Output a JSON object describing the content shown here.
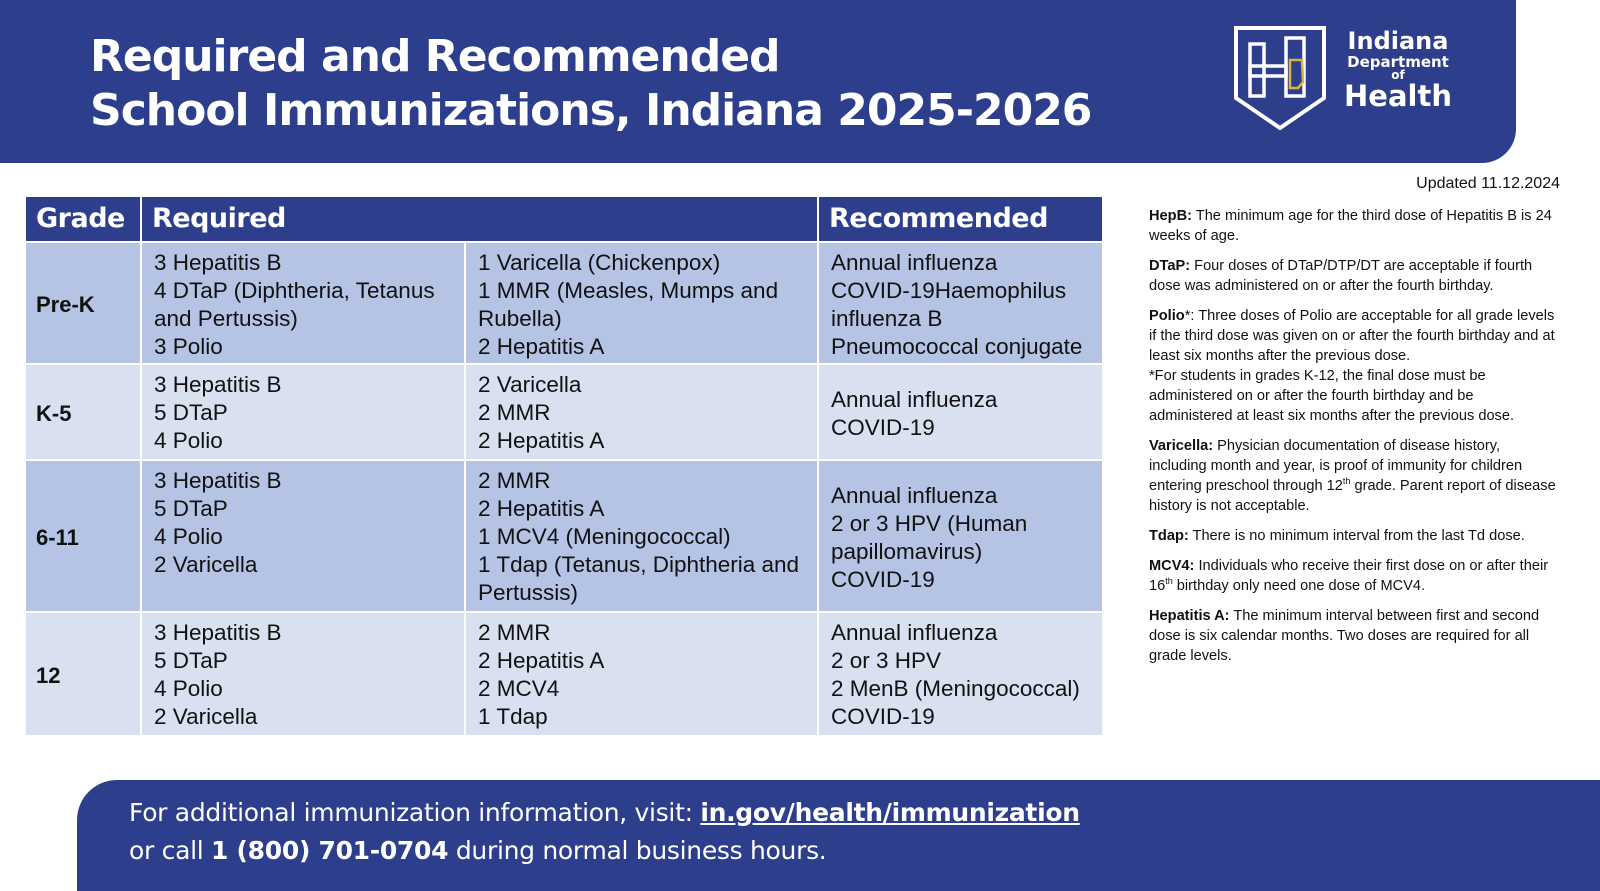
{
  "header": {
    "title_line1": "Required and Recommended",
    "title_line2": "School Immunizations, Indiana 2025-2026",
    "logo": {
      "line1": "Indiana",
      "line2": "Department",
      "line3": "of",
      "line4": "Health"
    }
  },
  "updated": "Updated 11.12.2024",
  "table": {
    "headers": {
      "grade": "Grade",
      "required": "Required",
      "recommended": "Recommended"
    },
    "rows": [
      {
        "grade": "Pre-K",
        "required_a": [
          "3 Hepatitis B",
          "4 DTaP (Diphtheria, Tetanus and Pertussis)",
          "3 Polio"
        ],
        "required_b": [
          "1 Varicella (Chickenpox)",
          "1 MMR (Measles, Mumps and Rubella)",
          "2 Hepatitis A"
        ],
        "recommended": [
          "Annual influenza",
          "COVID-19Haemophilus influenza B",
          "Pneumococcal conjugate"
        ]
      },
      {
        "grade": "K-5",
        "required_a": [
          "3 Hepatitis B",
          "5 DTaP",
          "4 Polio"
        ],
        "required_b": [
          "2 Varicella",
          "2 MMR",
          "2 Hepatitis A"
        ],
        "recommended": [
          "Annual influenza",
          "COVID-19"
        ]
      },
      {
        "grade": "6-11",
        "required_a": [
          "3 Hepatitis B",
          "5 DTaP",
          "4 Polio",
          "2 Varicella"
        ],
        "required_b": [
          "2 MMR",
          "2 Hepatitis A",
          "1 MCV4 (Meningococcal)",
          "1 Tdap (Tetanus, Diphtheria and Pertussis)"
        ],
        "recommended": [
          "Annual influenza",
          "2 or 3 HPV (Human papillomavirus)",
          "COVID-19"
        ]
      },
      {
        "grade": "12",
        "required_a": [
          "3 Hepatitis B",
          "5 DTaP",
          "4 Polio",
          "2 Varicella"
        ],
        "required_b": [
          "2 MMR",
          "2 Hepatitis A",
          "2 MCV4",
          "1 Tdap"
        ],
        "recommended": [
          "Annual influenza",
          "2 or 3 HPV",
          "2 MenB (Meningococcal)",
          "COVID-19"
        ]
      }
    ]
  },
  "notes": {
    "hepb": {
      "label": "HepB:",
      "text": " The minimum age for the third dose of Hepatitis B is 24 weeks of age."
    },
    "dtap": {
      "label": "DTaP:",
      "text": " Four doses of DTaP/DTP/DT are acceptable if fourth dose was administered on or after the fourth birthday."
    },
    "polio": {
      "label": "Polio",
      "star": "*:",
      "text": " Three doses of Polio are acceptable for all grade levels if the third dose was given on or after the fourth birthday and at least six months after the previous dose.",
      "footnote": "*For students in grades K-12, the final dose must be administered on or after the fourth birthday and be administered at least six months after the previous dose."
    },
    "varicella": {
      "label": "Varicella:",
      "text_a": " Physician documentation of disease history, including month and year, is proof of immunity for children entering preschool through 12",
      "sup": "th",
      "text_b": " grade. Parent report of disease history is not acceptable."
    },
    "tdap": {
      "label": "Tdap:",
      "text": " There is no minimum interval from the last Td dose."
    },
    "mcv4": {
      "label": "MCV4:",
      "text_a": " Individuals who receive their first dose on or after their 16",
      "sup": "th",
      "text_b": " birthday only need one dose of MCV4."
    },
    "hepa": {
      "label": "Hepatitis A:",
      "text": " The minimum interval between first and second dose is six calendar months. Two doses are required for all grade levels."
    }
  },
  "footer": {
    "line1_prefix": "For additional immunization information, visit: ",
    "link": "in.gov/health/immunization",
    "line2_prefix": "or call ",
    "phone": "1 (800) 701-0704",
    "line2_suffix": " during normal business hours."
  },
  "colors": {
    "navy": "#2c3e8c",
    "row_dark": "#b5c4e4",
    "row_light": "#d9e1f1",
    "logo_gold": "#e0b43a"
  }
}
